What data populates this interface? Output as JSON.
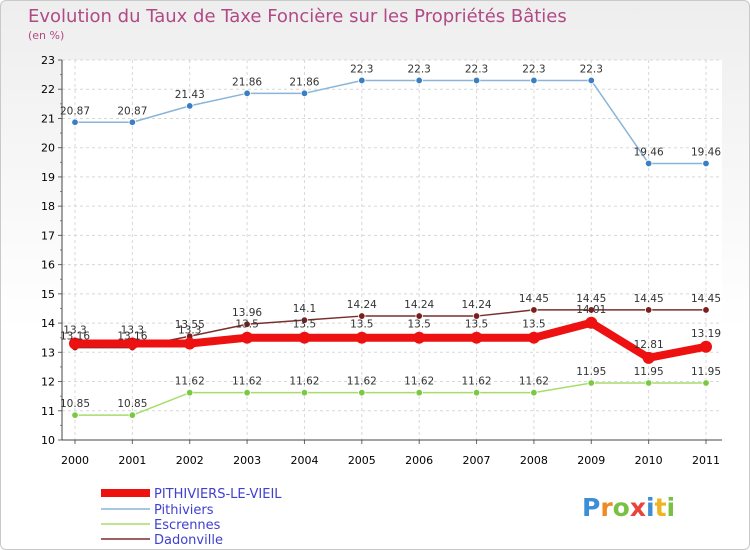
{
  "chart_data": {
    "type": "line",
    "title": "Evolution du Taux de Taxe Foncière sur les Propriétés Bâties",
    "ylabel": "(en %)",
    "xlabel": "",
    "ylim": [
      10,
      23
    ],
    "grid": true,
    "categories": [
      "2000",
      "2001",
      "2002",
      "2003",
      "2004",
      "2005",
      "2006",
      "2007",
      "2008",
      "2009",
      "2010",
      "2011"
    ],
    "series": [
      {
        "name": "PITHIVIERS-LE-VIEIL",
        "color": "#ee1111",
        "values": [
          13.3,
          13.3,
          13.3,
          13.5,
          13.5,
          13.5,
          13.5,
          13.5,
          13.5,
          14.01,
          12.81,
          13.19
        ],
        "labels": [
          "13.3",
          "13.3",
          "13.3",
          "13.5",
          "13.5",
          "13.5",
          "13.5",
          "13.5",
          "13.5",
          "14.01",
          "12.81",
          "13.19"
        ]
      },
      {
        "name": "Pithiviers",
        "color": "#8ab4d8",
        "values": [
          20.87,
          20.87,
          21.43,
          21.86,
          21.86,
          22.3,
          22.3,
          22.3,
          22.3,
          22.3,
          19.46,
          19.46
        ],
        "labels": [
          "20.87",
          "20.87",
          "21.43",
          "21.86",
          "21.86",
          "22.3",
          "22.3",
          "22.3",
          "22.3",
          "22.3",
          "19.46",
          "19.46"
        ]
      },
      {
        "name": "Escrennes",
        "color": "#a8dc6a",
        "values": [
          10.85,
          10.85,
          11.62,
          11.62,
          11.62,
          11.62,
          11.62,
          11.62,
          11.62,
          11.95,
          11.95,
          11.95
        ],
        "labels": [
          "10.85",
          "10.85",
          "11.62",
          "11.62",
          "11.62",
          "11.62",
          "11.62",
          "11.62",
          "11.62",
          "11.95",
          "11.95",
          "11.95"
        ]
      },
      {
        "name": "Dadonville",
        "color": "#7a2e2e",
        "values": [
          13.16,
          13.16,
          13.55,
          13.96,
          14.1,
          14.24,
          14.24,
          14.24,
          14.45,
          14.45,
          14.45,
          14.45
        ],
        "labels": [
          "13.16",
          "13.16",
          "13.55",
          "13.96",
          "14.1",
          "14.24",
          "14.24",
          "14.24",
          "14.45",
          "14.45",
          "14.45",
          "14.45"
        ]
      }
    ],
    "yticks": [
      10,
      11,
      12,
      13,
      14,
      15,
      16,
      17,
      18,
      19,
      20,
      21,
      22,
      23
    ],
    "legend_position": "bottom-left"
  },
  "logo": {
    "text": "Proxiti"
  }
}
